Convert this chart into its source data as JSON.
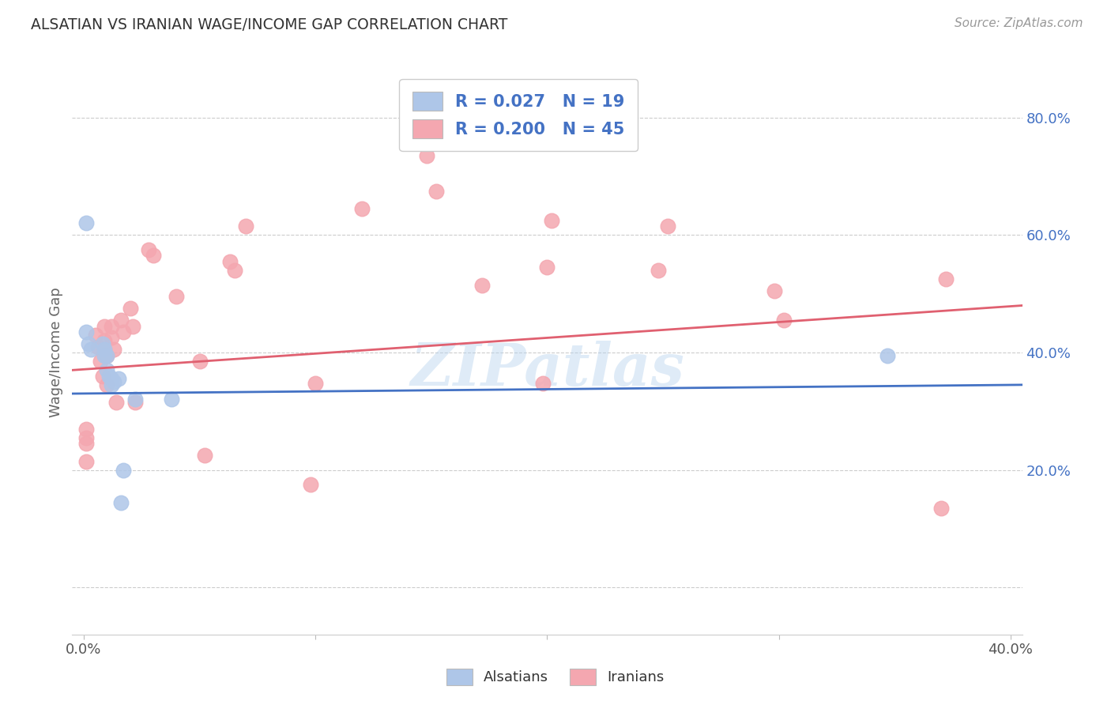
{
  "title": "ALSATIAN VS IRANIAN WAGE/INCOME GAP CORRELATION CHART",
  "source": "Source: ZipAtlas.com",
  "ylabel": "Wage/Income Gap",
  "xlim": [
    -0.005,
    0.405
  ],
  "ylim": [
    -0.08,
    0.88
  ],
  "alsatian_R": 0.027,
  "alsatian_N": 19,
  "iranian_R": 0.2,
  "iranian_N": 45,
  "alsatian_color": "#aec6e8",
  "iranian_color": "#f4a7b0",
  "alsatian_line_color": "#4472c4",
  "iranian_line_color": "#e06070",
  "watermark": "ZIPatlas",
  "background_color": "#ffffff",
  "grid_color": "#cccccc",
  "title_color": "#333333",
  "source_color": "#999999",
  "alsatian_x": [
    0.001,
    0.002,
    0.003,
    0.008,
    0.009,
    0.009,
    0.01,
    0.01,
    0.011,
    0.012,
    0.012,
    0.013,
    0.015,
    0.016,
    0.017,
    0.022,
    0.038,
    0.347,
    0.001
  ],
  "alsatian_y": [
    0.435,
    0.415,
    0.405,
    0.415,
    0.405,
    0.395,
    0.395,
    0.37,
    0.36,
    0.355,
    0.345,
    0.35,
    0.355,
    0.145,
    0.2,
    0.32,
    0.32,
    0.395,
    0.62
  ],
  "iranian_x": [
    0.001,
    0.001,
    0.001,
    0.001,
    0.005,
    0.006,
    0.007,
    0.008,
    0.009,
    0.009,
    0.009,
    0.01,
    0.01,
    0.012,
    0.012,
    0.013,
    0.014,
    0.016,
    0.017,
    0.02,
    0.021,
    0.022,
    0.028,
    0.03,
    0.04,
    0.05,
    0.052,
    0.063,
    0.065,
    0.07,
    0.098,
    0.1,
    0.12,
    0.148,
    0.152,
    0.172,
    0.198,
    0.2,
    0.202,
    0.248,
    0.252,
    0.298,
    0.302,
    0.37,
    0.372
  ],
  "iranian_y": [
    0.27,
    0.255,
    0.245,
    0.215,
    0.43,
    0.41,
    0.385,
    0.36,
    0.445,
    0.42,
    0.405,
    0.395,
    0.345,
    0.445,
    0.425,
    0.405,
    0.315,
    0.455,
    0.435,
    0.475,
    0.445,
    0.315,
    0.575,
    0.565,
    0.495,
    0.385,
    0.225,
    0.555,
    0.54,
    0.615,
    0.175,
    0.348,
    0.645,
    0.735,
    0.675,
    0.515,
    0.348,
    0.545,
    0.625,
    0.54,
    0.615,
    0.505,
    0.455,
    0.135,
    0.525
  ],
  "right_yticks": [
    0.2,
    0.4,
    0.6,
    0.8
  ],
  "right_yticklabels": [
    "20.0%",
    "40.0%",
    "60.0%",
    "80.0%"
  ],
  "x_tick_positions": [
    0.0,
    0.1,
    0.2,
    0.3,
    0.4
  ],
  "x_tick_labels": [
    "0.0%",
    "",
    "",
    "",
    "40.0%"
  ],
  "grid_yticks": [
    0.0,
    0.2,
    0.4,
    0.6,
    0.8
  ],
  "alsatian_trendline_x": [
    -0.005,
    0.405
  ],
  "alsatian_trendline_y": [
    0.33,
    0.345
  ],
  "iranian_trendline_x": [
    -0.005,
    0.405
  ],
  "iranian_trendline_y": [
    0.37,
    0.48
  ]
}
